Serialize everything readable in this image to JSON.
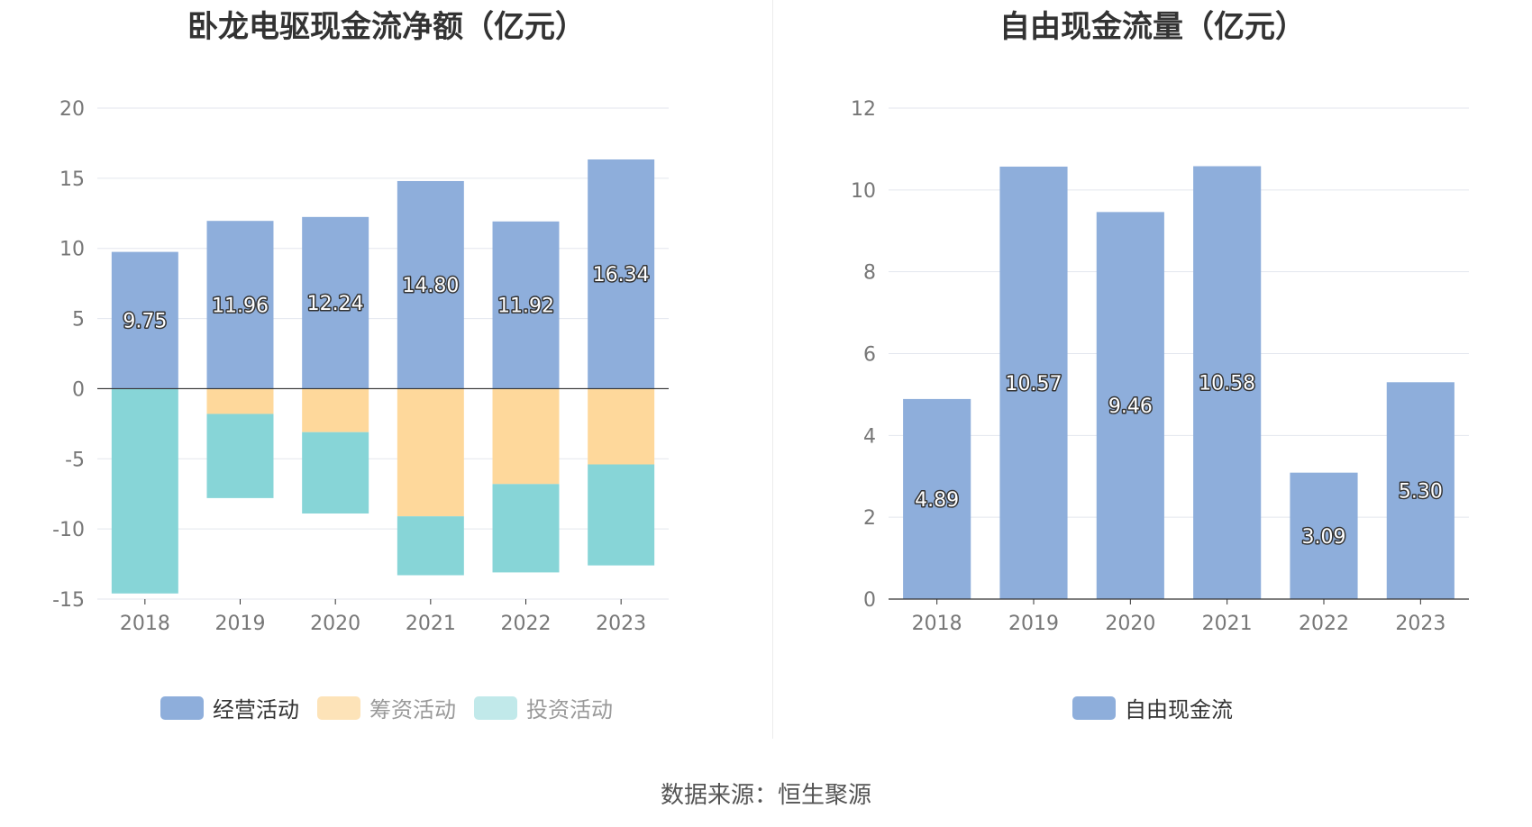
{
  "chart_data": [
    {
      "type": "bar",
      "stacked": true,
      "title": "卧龙电驱现金流净额（亿元）",
      "categories": [
        "2018",
        "2019",
        "2020",
        "2021",
        "2022",
        "2023"
      ],
      "series": [
        {
          "name": "经营活动",
          "color": "#8eaedb",
          "values": [
            9.75,
            11.96,
            12.24,
            14.8,
            11.92,
            16.34
          ],
          "labels": [
            "9.75",
            "11.96",
            "12.24",
            "14.80",
            "11.92",
            "16.34"
          ]
        },
        {
          "name": "筹资活动",
          "color": "#fed89b",
          "values": [
            0,
            -1.8,
            -3.1,
            -9.1,
            -6.8,
            -5.4
          ]
        },
        {
          "name": "投资活动",
          "color": "#87d5d7",
          "values": [
            -14.6,
            -6.0,
            -5.8,
            -4.2,
            -6.3,
            -7.2
          ]
        }
      ],
      "ylim": [
        -15,
        20
      ],
      "yticks": [
        20,
        15,
        10,
        5,
        0,
        -5,
        -10,
        -15
      ],
      "grid": true,
      "legend": "bottom"
    },
    {
      "type": "bar",
      "title": "自由现金流量（亿元）",
      "categories": [
        "2018",
        "2019",
        "2020",
        "2021",
        "2022",
        "2023"
      ],
      "series": [
        {
          "name": "自由现金流",
          "color": "#8eaedb",
          "values": [
            4.89,
            10.57,
            9.46,
            10.58,
            3.09,
            5.3
          ],
          "labels": [
            "4.89",
            "10.57",
            "9.46",
            "10.58",
            "3.09",
            "5.30"
          ]
        }
      ],
      "ylim": [
        0,
        12
      ],
      "yticks": [
        12,
        10,
        8,
        6,
        4,
        2,
        0
      ],
      "grid": true,
      "legend": "bottom"
    }
  ],
  "legend_swatches": {
    "经营活动": "#8eaedb",
    "筹资活动": "#fde3b8",
    "投资活动": "#c1e9ea",
    "自由现金流": "#8eaedb"
  },
  "source_text": "数据来源：恒生聚源"
}
